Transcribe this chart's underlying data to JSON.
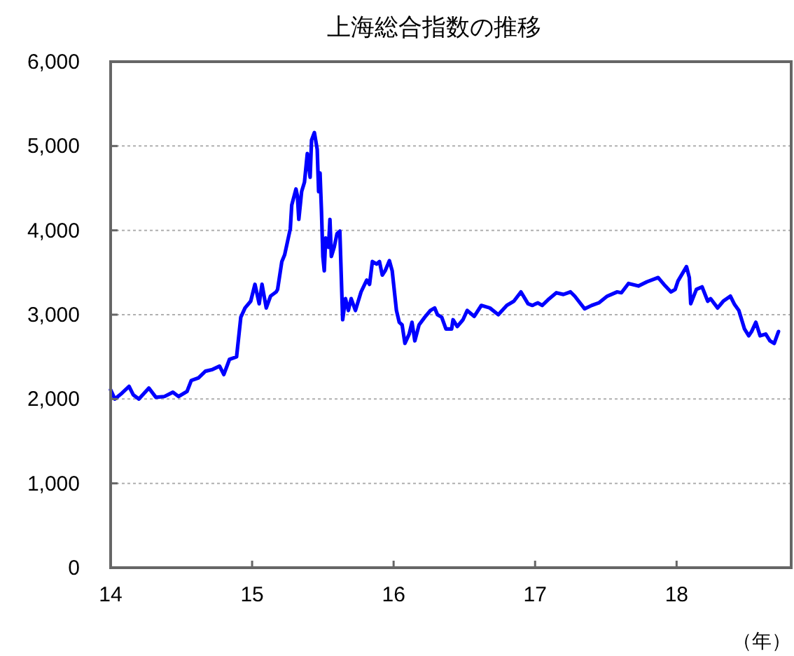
{
  "chart_data": {
    "type": "line",
    "title": "上海総合指数の推移",
    "xlabel": "（年）",
    "x": [
      14.0,
      14.03,
      14.08,
      14.13,
      14.16,
      14.2,
      14.27,
      14.32,
      14.38,
      14.44,
      14.48,
      14.54,
      14.57,
      14.62,
      14.67,
      14.72,
      14.77,
      14.8,
      14.84,
      14.89,
      14.92,
      14.95,
      14.99,
      15.02,
      15.05,
      15.07,
      15.1,
      15.13,
      15.17,
      15.18,
      15.21,
      15.23,
      15.27,
      15.28,
      15.31,
      15.32,
      15.33,
      15.35,
      15.37,
      15.39,
      15.41,
      15.42,
      15.44,
      15.46,
      15.47,
      15.48,
      15.49,
      15.5,
      15.51,
      15.52,
      15.54,
      15.55,
      15.56,
      15.58,
      15.6,
      15.62,
      15.64,
      15.66,
      15.68,
      15.7,
      15.73,
      15.77,
      15.81,
      15.83,
      15.85,
      15.88,
      15.9,
      15.92,
      15.94,
      15.97,
      15.99,
      16.02,
      16.04,
      16.06,
      16.08,
      16.11,
      16.13,
      16.15,
      16.18,
      16.22,
      16.26,
      16.29,
      16.31,
      16.34,
      16.37,
      16.41,
      16.42,
      16.45,
      16.49,
      16.52,
      16.57,
      16.62,
      16.68,
      16.74,
      16.8,
      16.85,
      16.9,
      16.95,
      16.98,
      17.02,
      17.05,
      17.1,
      17.15,
      17.2,
      17.25,
      17.28,
      17.35,
      17.4,
      17.45,
      17.51,
      17.58,
      17.61,
      17.66,
      17.73,
      17.79,
      17.87,
      17.91,
      17.96,
      17.99,
      18.01,
      18.07,
      18.09,
      18.1,
      18.14,
      18.18,
      18.22,
      18.24,
      18.29,
      18.33,
      18.38,
      18.41,
      18.44,
      18.48,
      18.51,
      18.53,
      18.56,
      18.59,
      18.63,
      18.66,
      18.69,
      18.72
    ],
    "values": [
      2110,
      2000,
      2070,
      2150,
      2050,
      2000,
      2130,
      2020,
      2030,
      2080,
      2030,
      2090,
      2220,
      2250,
      2330,
      2350,
      2390,
      2290,
      2470,
      2500,
      2970,
      3080,
      3160,
      3360,
      3130,
      3360,
      3080,
      3220,
      3270,
      3300,
      3630,
      3710,
      4020,
      4300,
      4490,
      4410,
      4130,
      4460,
      4570,
      4910,
      4630,
      5070,
      5160,
      4960,
      4460,
      4680,
      4240,
      3690,
      3520,
      3910,
      3800,
      4130,
      3690,
      3800,
      3960,
      3990,
      2940,
      3190,
      3050,
      3190,
      3050,
      3270,
      3410,
      3360,
      3630,
      3600,
      3630,
      3470,
      3520,
      3640,
      3520,
      3050,
      2910,
      2880,
      2660,
      2770,
      2910,
      2690,
      2880,
      2970,
      3050,
      3080,
      3000,
      2970,
      2830,
      2830,
      2940,
      2860,
      2940,
      3050,
      2980,
      3110,
      3080,
      3000,
      3110,
      3160,
      3270,
      3130,
      3110,
      3140,
      3110,
      3190,
      3260,
      3240,
      3270,
      3220,
      3070,
      3110,
      3140,
      3220,
      3270,
      3260,
      3370,
      3340,
      3390,
      3440,
      3360,
      3270,
      3300,
      3400,
      3570,
      3440,
      3130,
      3300,
      3330,
      3160,
      3190,
      3080,
      3160,
      3220,
      3120,
      3050,
      2830,
      2750,
      2800,
      2910,
      2750,
      2770,
      2690,
      2660,
      2800
    ],
    "color": "#0000ff",
    "xlim": [
      14,
      18.81
    ],
    "xticks": [
      14,
      15,
      16,
      17,
      18
    ],
    "ylim": [
      0,
      6000
    ],
    "yticks": [
      0,
      {
        "value": 1000,
        "label": "1,000"
      },
      {
        "value": 2000,
        "label": "2,000"
      },
      {
        "value": 3000,
        "label": "3,000"
      },
      {
        "value": 4000,
        "label": "4,000"
      },
      {
        "value": 5000,
        "label": "5,000"
      },
      {
        "value": 6000,
        "label": "6,000"
      }
    ],
    "grid": "y"
  }
}
